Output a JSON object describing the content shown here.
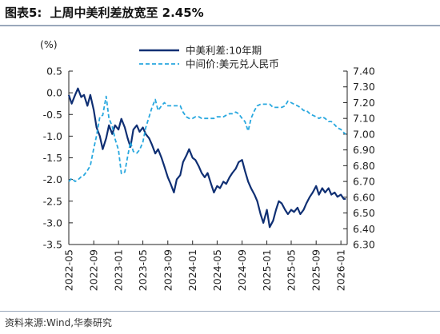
{
  "header": {
    "label": "图表5:",
    "title": "上周中美利差放宽至 2.45%"
  },
  "source": "资料来源:Wind,华泰研究",
  "colors": {
    "spread": "#0f2f73",
    "fx": "#29a8df",
    "axis": "#222222",
    "rule": "#9aa8bb"
  },
  "chart_data": {
    "type": "line",
    "unit_label": "(%)",
    "y_left": {
      "min": -3.5,
      "max": 0.5,
      "ticks": [
        "0.5",
        "0.0",
        "-0.5",
        "-1.0",
        "-1.5",
        "-2.0",
        "-2.5",
        "-3.0",
        "-3.5"
      ]
    },
    "y_right": {
      "min": 6.3,
      "max": 7.4,
      "ticks": [
        "7.40",
        "7.30",
        "7.20",
        "7.10",
        "7.00",
        "6.90",
        "6.80",
        "6.70",
        "6.60",
        "6.50",
        "6.40",
        "6.30"
      ]
    },
    "x_ticks": [
      "2022-05",
      "2022-09",
      "2023-01",
      "2023-05",
      "2023-09",
      "2024-01",
      "2024-05",
      "2024-09",
      "2025-01",
      "2025-05",
      "2025-09",
      "2026-01"
    ],
    "x_range": [
      "2022-05",
      "2026-02"
    ],
    "legend_position": "top-right",
    "series": [
      {
        "name": "中美利差:10年期",
        "axis": "left",
        "style": "solid",
        "points": [
          [
            "2022-05-01",
            -0.05
          ],
          [
            "2022-05-15",
            -0.25
          ],
          [
            "2022-06-01",
            -0.05
          ],
          [
            "2022-06-15",
            0.1
          ],
          [
            "2022-07-01",
            -0.1
          ],
          [
            "2022-07-15",
            -0.05
          ],
          [
            "2022-08-01",
            -0.3
          ],
          [
            "2022-08-15",
            -0.05
          ],
          [
            "2022-09-01",
            -0.4
          ],
          [
            "2022-09-15",
            -0.8
          ],
          [
            "2022-10-01",
            -1.0
          ],
          [
            "2022-10-15",
            -1.3
          ],
          [
            "2022-11-01",
            -1.05
          ],
          [
            "2022-11-15",
            -0.75
          ],
          [
            "2022-12-01",
            -0.95
          ],
          [
            "2022-12-15",
            -0.75
          ],
          [
            "2023-01-01",
            -0.85
          ],
          [
            "2023-01-15",
            -0.6
          ],
          [
            "2023-02-01",
            -0.8
          ],
          [
            "2023-02-15",
            -1.05
          ],
          [
            "2023-03-01",
            -1.25
          ],
          [
            "2023-03-15",
            -0.85
          ],
          [
            "2023-04-01",
            -0.75
          ],
          [
            "2023-04-15",
            -0.9
          ],
          [
            "2023-05-01",
            -0.8
          ],
          [
            "2023-05-15",
            -0.95
          ],
          [
            "2023-06-01",
            -1.05
          ],
          [
            "2023-06-15",
            -1.2
          ],
          [
            "2023-07-01",
            -1.4
          ],
          [
            "2023-07-15",
            -1.3
          ],
          [
            "2023-08-01",
            -1.5
          ],
          [
            "2023-08-15",
            -1.7
          ],
          [
            "2023-09-01",
            -1.95
          ],
          [
            "2023-09-15",
            -2.1
          ],
          [
            "2023-10-01",
            -2.3
          ],
          [
            "2023-10-15",
            -2.0
          ],
          [
            "2023-11-01",
            -1.9
          ],
          [
            "2023-11-15",
            -1.6
          ],
          [
            "2023-12-01",
            -1.45
          ],
          [
            "2023-12-15",
            -1.3
          ],
          [
            "2024-01-01",
            -1.5
          ],
          [
            "2024-01-15",
            -1.55
          ],
          [
            "2024-02-01",
            -1.7
          ],
          [
            "2024-02-15",
            -1.85
          ],
          [
            "2024-03-01",
            -1.95
          ],
          [
            "2024-03-15",
            -1.85
          ],
          [
            "2024-04-01",
            -2.1
          ],
          [
            "2024-04-15",
            -2.3
          ],
          [
            "2024-05-01",
            -2.15
          ],
          [
            "2024-05-15",
            -2.2
          ],
          [
            "2024-06-01",
            -2.05
          ],
          [
            "2024-06-15",
            -2.1
          ],
          [
            "2024-07-01",
            -1.95
          ],
          [
            "2024-07-15",
            -1.85
          ],
          [
            "2024-08-01",
            -1.75
          ],
          [
            "2024-08-15",
            -1.6
          ],
          [
            "2024-09-01",
            -1.55
          ],
          [
            "2024-09-15",
            -1.8
          ],
          [
            "2024-10-01",
            -2.05
          ],
          [
            "2024-10-15",
            -2.2
          ],
          [
            "2024-11-01",
            -2.35
          ],
          [
            "2024-11-15",
            -2.5
          ],
          [
            "2024-12-01",
            -2.8
          ],
          [
            "2024-12-15",
            -3.0
          ],
          [
            "2025-01-01",
            -2.7
          ],
          [
            "2025-01-15",
            -3.1
          ],
          [
            "2025-02-01",
            -2.95
          ],
          [
            "2025-02-15",
            -2.7
          ],
          [
            "2025-03-01",
            -2.5
          ],
          [
            "2025-03-15",
            -2.55
          ],
          [
            "2025-04-01",
            -2.7
          ],
          [
            "2025-04-15",
            -2.8
          ],
          [
            "2025-05-01",
            -2.7
          ],
          [
            "2025-05-15",
            -2.75
          ],
          [
            "2025-06-01",
            -2.65
          ],
          [
            "2025-06-15",
            -2.8
          ],
          [
            "2025-07-01",
            -2.7
          ],
          [
            "2025-07-15",
            -2.55
          ],
          [
            "2025-08-01",
            -2.4
          ],
          [
            "2025-08-15",
            -2.3
          ],
          [
            "2025-09-01",
            -2.15
          ],
          [
            "2025-09-15",
            -2.35
          ],
          [
            "2025-10-01",
            -2.2
          ],
          [
            "2025-10-15",
            -2.3
          ],
          [
            "2025-11-01",
            -2.2
          ],
          [
            "2025-11-15",
            -2.35
          ],
          [
            "2025-12-01",
            -2.3
          ],
          [
            "2025-12-15",
            -2.4
          ],
          [
            "2026-01-01",
            -2.35
          ],
          [
            "2026-01-15",
            -2.45
          ],
          [
            "2026-01-25",
            -2.45
          ]
        ]
      },
      {
        "name": "中间价:美元兑人民币",
        "axis": "right",
        "style": "dashed",
        "points": [
          [
            "2022-05-01",
            6.7
          ],
          [
            "2022-05-15",
            6.72
          ],
          [
            "2022-06-01",
            6.7
          ],
          [
            "2022-06-15",
            6.71
          ],
          [
            "2022-07-01",
            6.73
          ],
          [
            "2022-07-15",
            6.74
          ],
          [
            "2022-08-01",
            6.77
          ],
          [
            "2022-08-15",
            6.8
          ],
          [
            "2022-09-01",
            6.91
          ],
          [
            "2022-09-15",
            6.99
          ],
          [
            "2022-10-01",
            7.11
          ],
          [
            "2022-10-15",
            7.12
          ],
          [
            "2022-11-01",
            7.24
          ],
          [
            "2022-11-15",
            7.1
          ],
          [
            "2022-12-01",
            7.05
          ],
          [
            "2022-12-15",
            6.97
          ],
          [
            "2023-01-01",
            6.9
          ],
          [
            "2023-01-15",
            6.75
          ],
          [
            "2023-02-01",
            6.76
          ],
          [
            "2023-02-15",
            6.86
          ],
          [
            "2023-03-01",
            6.95
          ],
          [
            "2023-03-15",
            6.89
          ],
          [
            "2023-04-01",
            6.88
          ],
          [
            "2023-04-15",
            6.9
          ],
          [
            "2023-05-01",
            6.95
          ],
          [
            "2023-05-15",
            7.04
          ],
          [
            "2023-06-01",
            7.11
          ],
          [
            "2023-06-15",
            7.17
          ],
          [
            "2023-07-01",
            7.22
          ],
          [
            "2023-07-15",
            7.15
          ],
          [
            "2023-08-01",
            7.18
          ],
          [
            "2023-08-15",
            7.2
          ],
          [
            "2023-09-01",
            7.18
          ],
          [
            "2023-09-15",
            7.18
          ],
          [
            "2023-10-01",
            7.18
          ],
          [
            "2023-10-15",
            7.18
          ],
          [
            "2023-11-01",
            7.18
          ],
          [
            "2023-11-15",
            7.14
          ],
          [
            "2023-12-01",
            7.11
          ],
          [
            "2023-12-15",
            7.1
          ],
          [
            "2024-01-01",
            7.1
          ],
          [
            "2024-01-15",
            7.11
          ],
          [
            "2024-02-01",
            7.11
          ],
          [
            "2024-02-15",
            7.1
          ],
          [
            "2024-03-01",
            7.1
          ],
          [
            "2024-03-15",
            7.1
          ],
          [
            "2024-04-01",
            7.1
          ],
          [
            "2024-04-15",
            7.1
          ],
          [
            "2024-05-01",
            7.11
          ],
          [
            "2024-05-15",
            7.11
          ],
          [
            "2024-06-01",
            7.11
          ],
          [
            "2024-06-15",
            7.12
          ],
          [
            "2024-07-01",
            7.13
          ],
          [
            "2024-07-15",
            7.13
          ],
          [
            "2024-08-01",
            7.14
          ],
          [
            "2024-08-15",
            7.13
          ],
          [
            "2024-09-01",
            7.1
          ],
          [
            "2024-09-15",
            7.08
          ],
          [
            "2024-10-01",
            7.02
          ],
          [
            "2024-10-15",
            7.1
          ],
          [
            "2024-11-01",
            7.15
          ],
          [
            "2024-11-15",
            7.18
          ],
          [
            "2024-12-01",
            7.19
          ],
          [
            "2024-12-15",
            7.19
          ],
          [
            "2025-01-01",
            7.19
          ],
          [
            "2025-01-15",
            7.19
          ],
          [
            "2025-02-01",
            7.17
          ],
          [
            "2025-02-15",
            7.17
          ],
          [
            "2025-03-01",
            7.17
          ],
          [
            "2025-03-15",
            7.17
          ],
          [
            "2025-04-01",
            7.18
          ],
          [
            "2025-04-15",
            7.21
          ],
          [
            "2025-05-01",
            7.2
          ],
          [
            "2025-05-15",
            7.19
          ],
          [
            "2025-06-01",
            7.18
          ],
          [
            "2025-06-15",
            7.17
          ],
          [
            "2025-07-01",
            7.15
          ],
          [
            "2025-07-15",
            7.15
          ],
          [
            "2025-08-01",
            7.13
          ],
          [
            "2025-08-15",
            7.12
          ],
          [
            "2025-09-01",
            7.11
          ],
          [
            "2025-09-15",
            7.1
          ],
          [
            "2025-10-01",
            7.11
          ],
          [
            "2025-10-15",
            7.1
          ],
          [
            "2025-11-01",
            7.08
          ],
          [
            "2025-11-15",
            7.08
          ],
          [
            "2025-12-01",
            7.06
          ],
          [
            "2025-12-15",
            7.04
          ],
          [
            "2026-01-01",
            7.03
          ],
          [
            "2026-01-15",
            7.01
          ],
          [
            "2026-01-25",
            7.0
          ]
        ]
      }
    ]
  }
}
